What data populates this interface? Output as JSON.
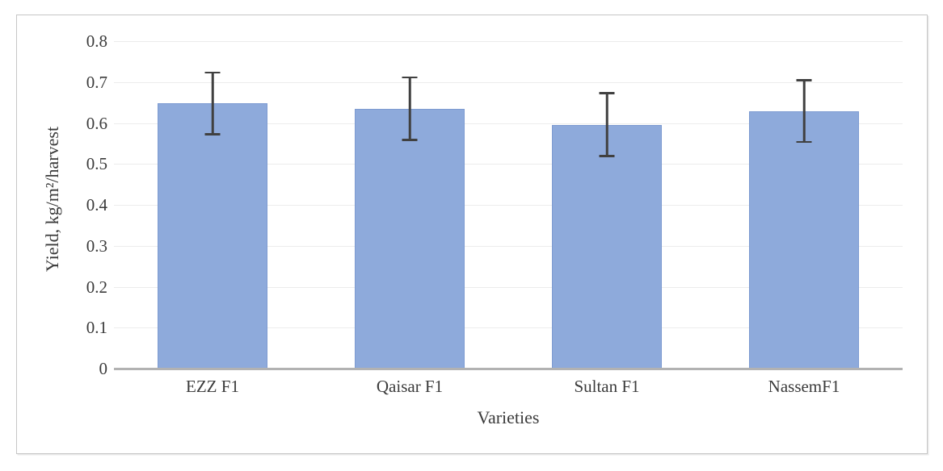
{
  "figure": {
    "background": "#ffffff",
    "border_color": "#c6c6c6"
  },
  "chart_data": {
    "type": "bar",
    "title": "",
    "xlabel": "Varieties",
    "ylabel": "Yield, kg/m²/harvest",
    "categories": [
      "EZZ F1",
      "Qaisar F1",
      "Sultan F1",
      "NassemF1"
    ],
    "values": [
      0.648,
      0.635,
      0.596,
      0.629
    ],
    "error_bars": {
      "type": "symmetric",
      "values": [
        0.078,
        0.079,
        0.079,
        0.078
      ]
    },
    "ylim": [
      0,
      0.8
    ],
    "ytick_step": 0.1,
    "ytick_labels": [
      "0",
      "0.1",
      "0.2",
      "0.3",
      "0.4",
      "0.5",
      "0.6",
      "0.7",
      "0.8"
    ],
    "grid": true,
    "legend": null,
    "colors": {
      "bar_fill": "#8eaadb",
      "bar_border": "#7d9bd1",
      "error_bar": "#404040",
      "gridline": "#ececec",
      "axis_line": "#b2b2b2",
      "text": "#3b3b3b"
    }
  }
}
